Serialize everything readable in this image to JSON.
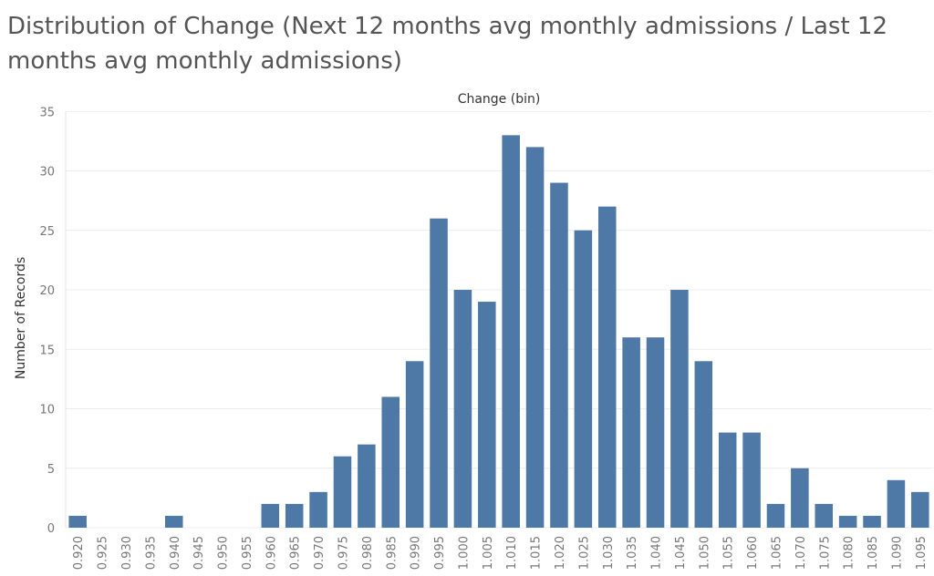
{
  "chart_data": {
    "type": "bar",
    "title": "Distribution of Change (Next 12 months avg monthly admissions / Last 12 months avg monthly admissions)",
    "xlabel": "Change (bin)",
    "ylabel": "Number of Records",
    "ylim": [
      0,
      35
    ],
    "yticks": [
      0,
      5,
      10,
      15,
      20,
      25,
      30,
      35
    ],
    "grid": true,
    "bar_color": "#4e79a7",
    "categories": [
      "0.920",
      "0.925",
      "0.930",
      "0.935",
      "0.940",
      "0.945",
      "0.950",
      "0.955",
      "0.960",
      "0.965",
      "0.970",
      "0.975",
      "0.980",
      "0.985",
      "0.990",
      "0.995",
      "1.000",
      "1.005",
      "1.010",
      "1.015",
      "1.020",
      "1.025",
      "1.030",
      "1.035",
      "1.040",
      "1.045",
      "1.050",
      "1.055",
      "1.060",
      "1.065",
      "1.070",
      "1.075",
      "1.080",
      "1.085",
      "1.090",
      "1.095"
    ],
    "values": [
      1,
      0,
      0,
      0,
      1,
      0,
      0,
      0,
      2,
      2,
      3,
      6,
      7,
      11,
      14,
      26,
      20,
      19,
      33,
      32,
      29,
      25,
      27,
      16,
      16,
      20,
      14,
      8,
      8,
      2,
      5,
      2,
      1,
      1,
      4,
      3
    ]
  }
}
